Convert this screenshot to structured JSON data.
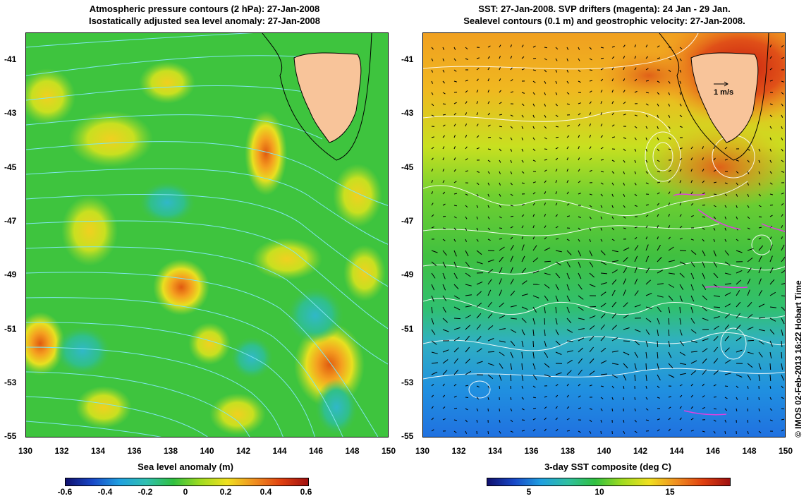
{
  "left_panel": {
    "title_line1": "Atmospheric pressure contours (2 hPa): 27-Jan-2008",
    "title_line2": "Isostatically adjusted sea level anomaly: 27-Jan-2008",
    "colorbar_label": "Sea level anomaly (m)",
    "colorbar_ticks": [
      "-0.6",
      "-0.4",
      "-0.2",
      "0",
      "0.2",
      "0.4",
      "0.6"
    ]
  },
  "right_panel": {
    "title_line1": "SST: 27-Jan-2008. SVP drifters (magenta): 24 Jan - 29 Jan.",
    "title_line2": "Sealevel contours (0.1 m) and geostrophic velocity: 27-Jan-2008.",
    "colorbar_label": "3-day SST composite (deg C)",
    "colorbar_ticks": [
      "5",
      "10",
      "15"
    ],
    "velocity_scale": "1 m/s"
  },
  "axes": {
    "lat_ticks": [
      "-41",
      "-43",
      "-45",
      "-47",
      "-49",
      "-51",
      "-53",
      "-55"
    ],
    "lon_ticks": [
      "130",
      "132",
      "134",
      "136",
      "138",
      "140",
      "142",
      "144",
      "146",
      "148",
      "150"
    ]
  },
  "copyright": "© IMOS 02-Feb-2013 16:22 Hobart Time",
  "colors": {
    "land": "#f8c49a",
    "contour_pressure": "#7fe6ee",
    "contour_sealevel": "#ffffff",
    "coastline": "#000000"
  }
}
